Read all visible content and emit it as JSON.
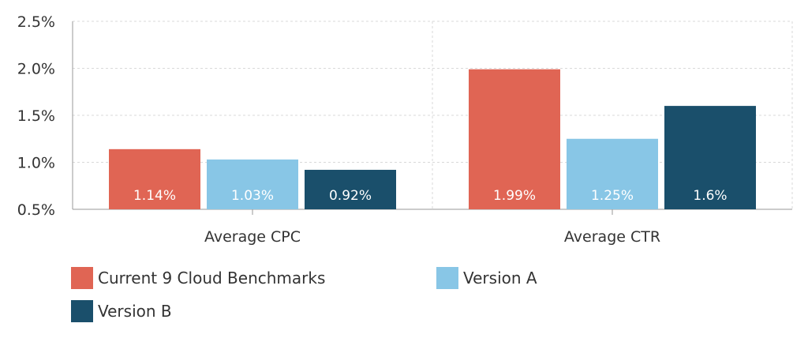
{
  "chart_data": {
    "type": "bar",
    "categories": [
      "Average CPC",
      "Average CTR"
    ],
    "series": [
      {
        "name": "Current 9 Cloud Benchmarks",
        "values": [
          1.14,
          1.99
        ],
        "labels": [
          "1.14%",
          "1.99%"
        ],
        "color": "#e06554"
      },
      {
        "name": "Version A",
        "values": [
          1.03,
          1.25
        ],
        "labels": [
          "1.03%",
          "1.25%"
        ],
        "color": "#88c6e6"
      },
      {
        "name": "Version B",
        "values": [
          0.92,
          1.6
        ],
        "labels": [
          "0.92%",
          "1.6%"
        ],
        "color": "#1a4f6b"
      }
    ],
    "ylim": [
      0.5,
      2.5
    ],
    "yticks": [
      0.5,
      1.0,
      1.5,
      2.0,
      2.5
    ],
    "ytick_labels": [
      "0.5%",
      "1.0%",
      "1.5%",
      "2.0%",
      "2.5%"
    ],
    "grid": true,
    "legend_position": "bottom-left",
    "title": "",
    "xlabel": "",
    "ylabel": ""
  }
}
